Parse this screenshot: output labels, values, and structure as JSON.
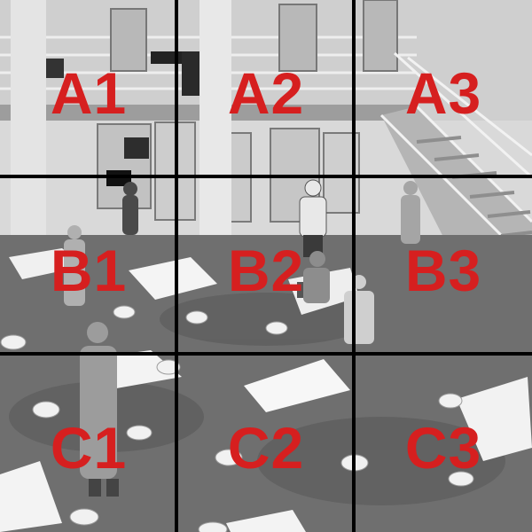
{
  "grid": {
    "line_color": "#000000",
    "label_color": "#d61f1f",
    "rows": [
      "A",
      "B",
      "C"
    ],
    "columns": [
      "1",
      "2",
      "3"
    ],
    "cells": [
      {
        "row": 0,
        "col": 0,
        "label": "A1"
      },
      {
        "row": 0,
        "col": 1,
        "label": "A2"
      },
      {
        "row": 0,
        "col": 2,
        "label": "A3"
      },
      {
        "row": 1,
        "col": 0,
        "label": "B1"
      },
      {
        "row": 1,
        "col": 1,
        "label": "B2"
      },
      {
        "row": 1,
        "col": 2,
        "label": "B3"
      },
      {
        "row": 2,
        "col": 0,
        "label": "C1"
      },
      {
        "row": 2,
        "col": 1,
        "label": "C2"
      },
      {
        "row": 2,
        "col": 2,
        "label": "C3"
      }
    ]
  },
  "scene": {
    "tone": "grayscale"
  }
}
